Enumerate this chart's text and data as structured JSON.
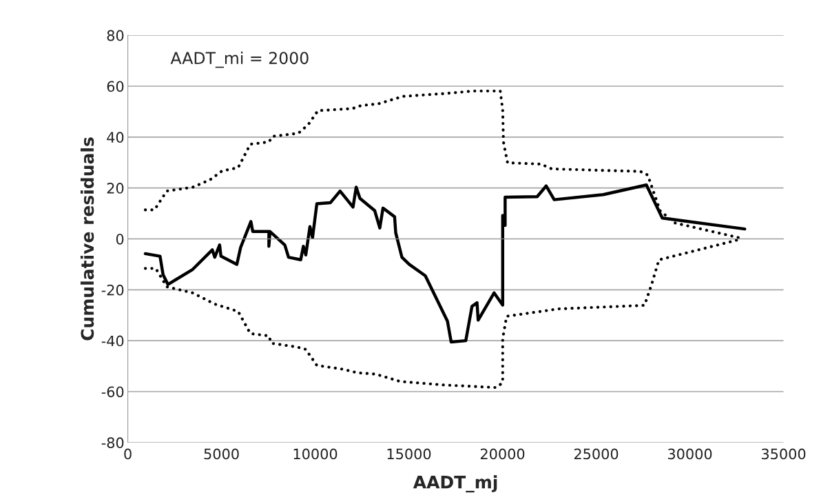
{
  "chart_data": {
    "type": "line",
    "xlabel": "AADT_mj",
    "ylabel": "Cumulative residuals",
    "annotations": [
      "AADT_mi = 2000"
    ],
    "xlim": [
      0,
      35000
    ],
    "xticks": [
      0,
      5000,
      10000,
      15000,
      20000,
      25000,
      30000,
      35000
    ],
    "ylim": [
      -80,
      80
    ],
    "yticks": [
      -80,
      -60,
      -40,
      -20,
      0,
      20,
      40,
      60,
      80
    ],
    "grid": "y",
    "marker": "none",
    "series": [
      {
        "color": "#000000",
        "line_style": "solid",
        "x": [
          935,
          1720,
          1880,
          2140,
          3460,
          4510,
          4640,
          4900,
          4970,
          5820,
          6020,
          6570,
          6670,
          7530,
          7530,
          7590,
          8380,
          8580,
          9230,
          9370,
          9500,
          9720,
          9860,
          10090,
          10810,
          11330,
          12020,
          12190,
          12390,
          13180,
          13450,
          13620,
          14240,
          14300,
          14630,
          15020,
          15880,
          17060,
          17260,
          18040,
          18370,
          18640,
          18700,
          19550,
          20010,
          20010,
          20140,
          20140,
          21850,
          22330,
          22760,
          25380,
          27680,
          28530,
          32930
        ],
        "values": [
          -5.8,
          -6.8,
          -14,
          -17.9,
          -12,
          -4.3,
          -7.2,
          -2.4,
          -6.8,
          -10,
          -3.4,
          6.8,
          2.9,
          2.9,
          -2.9,
          2.9,
          -2.4,
          -7.2,
          -8.2,
          -2.9,
          -6.3,
          4.8,
          0.5,
          13.8,
          14.2,
          18.8,
          12.5,
          20.3,
          15.9,
          11.1,
          4.3,
          12.1,
          8.7,
          2.4,
          -7.2,
          -10,
          -14.5,
          -32.3,
          -40.5,
          -40,
          -26.5,
          -25.1,
          -31.9,
          -21.2,
          -26,
          9.2,
          5.3,
          16.4,
          16.6,
          20.8,
          15.4,
          17.4,
          21.2,
          8.2,
          3.9
        ]
      },
      {
        "color": "#000000",
        "line_style": "dotted",
        "x": [
          935,
          1420,
          2080,
          3460,
          4380,
          5030,
          5890,
          6540,
          7530,
          7730,
          9100,
          9630,
          10150,
          11990,
          12460,
          13380,
          14690,
          17060,
          18440,
          19880,
          20010,
          20050,
          20270,
          22040,
          22630,
          27360,
          27750,
          28410,
          29190,
          32610
        ],
        "values": [
          11.4,
          11.4,
          18.8,
          20.3,
          23.2,
          26.7,
          28,
          37.2,
          38.1,
          40.3,
          41.5,
          44.9,
          50.4,
          51.2,
          52.4,
          53.1,
          56,
          57.2,
          58.1,
          58.1,
          50.7,
          38.1,
          29.9,
          29.4,
          27.5,
          26.5,
          25.1,
          11.1,
          6.3,
          0.5
        ]
      },
      {
        "color": "#000000",
        "line_style": "dotted",
        "x": [
          935,
          1490,
          2080,
          3460,
          4640,
          5890,
          6540,
          7530,
          7660,
          9040,
          9500,
          10090,
          11470,
          12260,
          13220,
          14530,
          16900,
          19660,
          20010,
          20010,
          20220,
          22040,
          22980,
          27580,
          27960,
          28350,
          30190,
          32490
        ],
        "values": [
          -11.6,
          -11.6,
          -18.8,
          -21.2,
          -25.6,
          -28.5,
          -37.2,
          -38.1,
          -41,
          -42.5,
          -43.4,
          -49.7,
          -51.2,
          -52.6,
          -53.1,
          -56,
          -57.4,
          -58.4,
          -56.5,
          -39.1,
          -30.4,
          -28.5,
          -27.5,
          -26.1,
          -17.9,
          -8.2,
          -4.8,
          -0.5
        ]
      }
    ]
  }
}
